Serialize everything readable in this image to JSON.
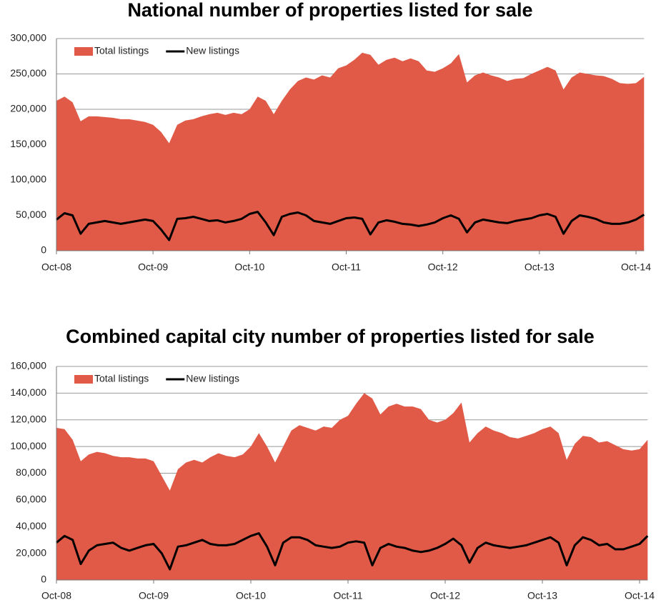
{
  "chart_data": [
    {
      "type": "area",
      "title": "National number of properties listed for sale",
      "categories": [
        "Oct-08",
        null,
        null,
        null,
        null,
        null,
        null,
        null,
        null,
        null,
        null,
        null,
        "Oct-09",
        null,
        null,
        null,
        null,
        null,
        null,
        null,
        null,
        null,
        null,
        null,
        "Oct-10",
        null,
        null,
        null,
        null,
        null,
        null,
        null,
        null,
        null,
        null,
        null,
        "Oct-11",
        null,
        null,
        null,
        null,
        null,
        null,
        null,
        null,
        null,
        null,
        null,
        "Oct-12",
        null,
        null,
        null,
        null,
        null,
        null,
        null,
        null,
        null,
        null,
        null,
        "Oct-13",
        null,
        null,
        null,
        null,
        null,
        null,
        null,
        null,
        null,
        null,
        null,
        "Oct-14",
        null
      ],
      "series": [
        {
          "name": "Total listings",
          "type": "area",
          "color": "#e05a47",
          "values": [
            212000,
            218000,
            210000,
            183000,
            190000,
            190000,
            189000,
            188000,
            186000,
            186000,
            184000,
            182000,
            178000,
            168000,
            152000,
            178000,
            184000,
            186000,
            190000,
            193000,
            195000,
            192000,
            195000,
            193000,
            200000,
            218000,
            212000,
            193000,
            212000,
            228000,
            240000,
            245000,
            242000,
            248000,
            245000,
            258000,
            262000,
            270000,
            280000,
            277000,
            263000,
            270000,
            273000,
            268000,
            272000,
            268000,
            255000,
            253000,
            258000,
            265000,
            278000,
            238000,
            248000,
            252000,
            248000,
            245000,
            240000,
            243000,
            244000,
            250000,
            255000,
            260000,
            255000,
            228000,
            245000,
            252000,
            250000,
            248000,
            247000,
            243000,
            237000,
            236000,
            237000,
            246000
          ]
        },
        {
          "name": "New listings",
          "type": "line",
          "color": "#000000",
          "values": [
            44000,
            53000,
            50000,
            24000,
            38000,
            40000,
            42000,
            40000,
            38000,
            40000,
            42000,
            44000,
            42000,
            30000,
            15000,
            45000,
            46000,
            48000,
            45000,
            42000,
            43000,
            40000,
            42000,
            45000,
            52000,
            55000,
            40000,
            22000,
            48000,
            52000,
            54000,
            50000,
            42000,
            40000,
            38000,
            42000,
            46000,
            47000,
            45000,
            23000,
            40000,
            43000,
            41000,
            38000,
            37000,
            35000,
            37000,
            40000,
            46000,
            50000,
            45000,
            26000,
            40000,
            44000,
            42000,
            40000,
            39000,
            42000,
            44000,
            46000,
            50000,
            52000,
            48000,
            24000,
            42000,
            50000,
            48000,
            45000,
            40000,
            38000,
            38000,
            40000,
            44000,
            51000
          ]
        }
      ],
      "ylim": [
        0,
        300000
      ],
      "yticks": [
        0,
        {
          "value": 50000,
          "label": "50,000"
        },
        {
          "value": 100000,
          "label": "100,000"
        },
        {
          "value": 150000,
          "label": "150,000"
        },
        {
          "value": 200000,
          "label": "200,000"
        },
        {
          "value": 250000,
          "label": "250,000"
        },
        {
          "value": 300000,
          "label": "300,000"
        }
      ],
      "grid": true,
      "legend": "top-left"
    },
    {
      "type": "area",
      "title": "Combined capital city number of properties listed for sale",
      "categories": [
        "Oct-08",
        null,
        null,
        null,
        null,
        null,
        null,
        null,
        null,
        null,
        null,
        null,
        "Oct-09",
        null,
        null,
        null,
        null,
        null,
        null,
        null,
        null,
        null,
        null,
        null,
        "Oct-10",
        null,
        null,
        null,
        null,
        null,
        null,
        null,
        null,
        null,
        null,
        null,
        "Oct-11",
        null,
        null,
        null,
        null,
        null,
        null,
        null,
        null,
        null,
        null,
        null,
        "Oct-12",
        null,
        null,
        null,
        null,
        null,
        null,
        null,
        null,
        null,
        null,
        null,
        "Oct-13",
        null,
        null,
        null,
        null,
        null,
        null,
        null,
        null,
        null,
        null,
        null,
        "Oct-14",
        null
      ],
      "series": [
        {
          "name": "Total listings",
          "type": "area",
          "color": "#e05a47",
          "values": [
            114000,
            113000,
            105000,
            89000,
            94000,
            96000,
            95000,
            93000,
            92000,
            92000,
            91000,
            91000,
            89000,
            78000,
            67000,
            83000,
            88000,
            90000,
            88000,
            92000,
            95000,
            93000,
            92000,
            94000,
            100000,
            110000,
            100000,
            88000,
            100000,
            112000,
            116000,
            114000,
            112000,
            115000,
            114000,
            120000,
            123000,
            132000,
            140000,
            136000,
            124000,
            130000,
            132000,
            130000,
            130000,
            128000,
            120000,
            118000,
            120000,
            125000,
            133000,
            103000,
            110000,
            115000,
            112000,
            110000,
            107000,
            106000,
            108000,
            110000,
            113000,
            115000,
            110000,
            90000,
            102000,
            108000,
            107000,
            103000,
            104000,
            101000,
            98000,
            97000,
            98000,
            105000
          ]
        },
        {
          "name": "New listings",
          "type": "line",
          "color": "#000000",
          "values": [
            28000,
            33000,
            30000,
            12000,
            22000,
            26000,
            27000,
            28000,
            24000,
            22000,
            24000,
            26000,
            27000,
            20000,
            8000,
            25000,
            26000,
            28000,
            30000,
            27000,
            26000,
            26000,
            27000,
            30000,
            33000,
            35000,
            25000,
            11000,
            28000,
            32000,
            32000,
            30000,
            26000,
            25000,
            24000,
            25000,
            28000,
            29000,
            28000,
            11000,
            24000,
            27000,
            25000,
            24000,
            22000,
            21000,
            22000,
            24000,
            27000,
            31000,
            26000,
            13000,
            24000,
            28000,
            26000,
            25000,
            24000,
            25000,
            26000,
            28000,
            30000,
            32000,
            28000,
            11000,
            26000,
            32000,
            30000,
            26000,
            27000,
            23000,
            23000,
            25000,
            27000,
            33000
          ]
        }
      ],
      "ylim": [
        0,
        160000
      ],
      "yticks": [
        0,
        {
          "value": 20000,
          "label": "20,000"
        },
        {
          "value": 40000,
          "label": "40,000"
        },
        {
          "value": 60000,
          "label": "60,000"
        },
        {
          "value": 80000,
          "label": "80,000"
        },
        {
          "value": 100000,
          "label": "100,000"
        },
        {
          "value": 120000,
          "label": "120,000"
        },
        {
          "value": 140000,
          "label": "140,000"
        },
        {
          "value": 160000,
          "label": "160,000"
        }
      ],
      "grid": true,
      "legend": "top-left"
    }
  ]
}
